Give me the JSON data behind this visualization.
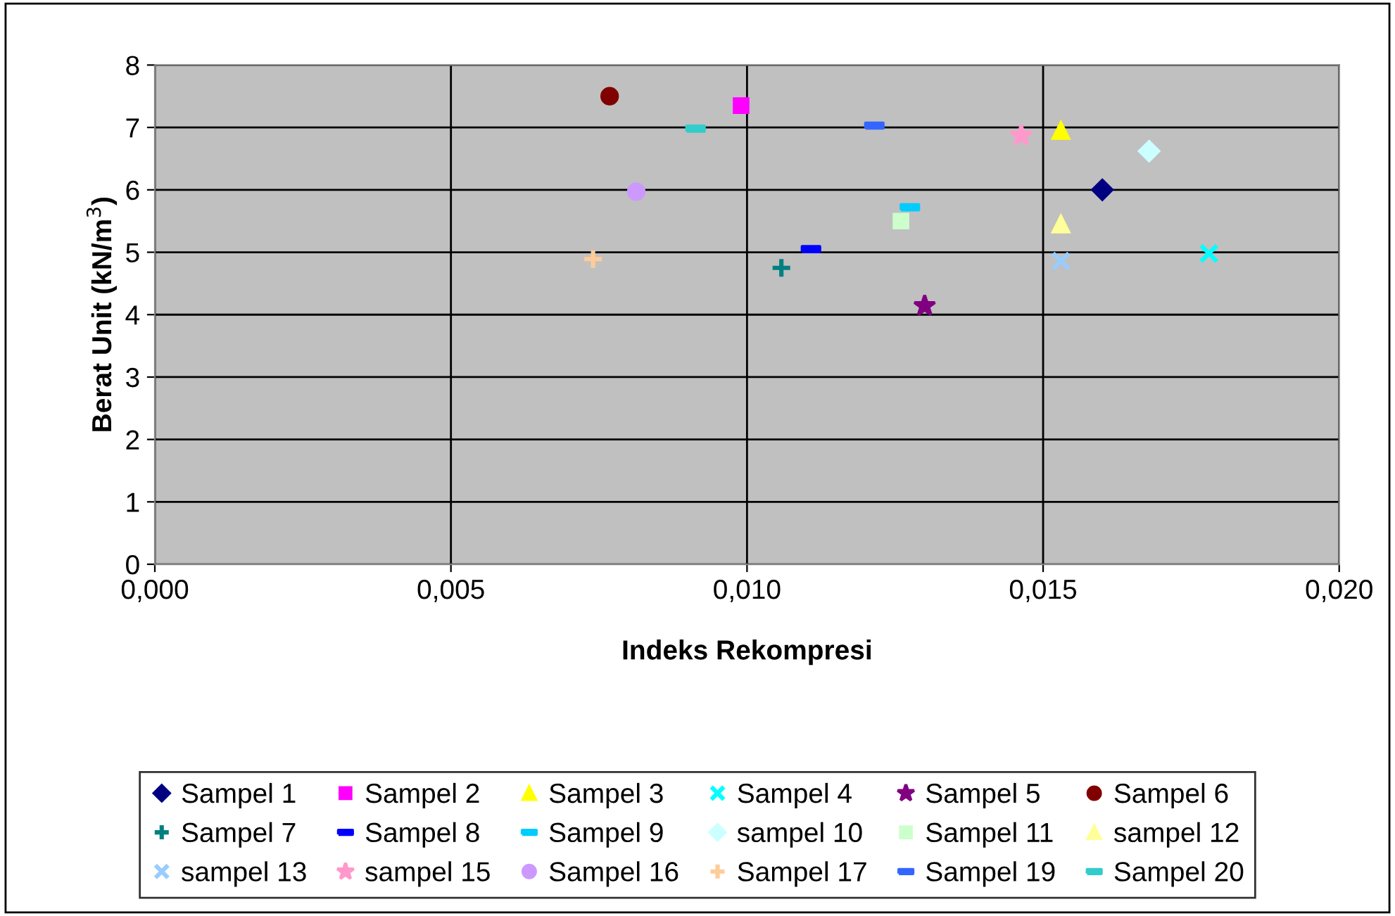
{
  "chart_data": {
    "type": "scatter",
    "xlabel": "Indeks Rekompresi",
    "ylabel": "Berat Unit (kN/m$^{3}$)",
    "xlim": [
      0,
      0.02
    ],
    "ylim": [
      0,
      8
    ],
    "xticks": [
      {
        "value": 0,
        "label": "0,000"
      },
      {
        "value": 0.005,
        "label": "0,005"
      },
      {
        "value": 0.01,
        "label": "0,010"
      },
      {
        "value": 0.015,
        "label": "0,015"
      },
      {
        "value": 0.02,
        "label": "0,020"
      }
    ],
    "yticks": [
      0,
      1,
      2,
      3,
      4,
      5,
      6,
      7,
      8
    ],
    "grid": true,
    "legend": "bottom",
    "series": [
      {
        "name": "Sampel 1",
        "color": "#000080",
        "marker": "diamond",
        "x": [
          0.016
        ],
        "values": [
          6.0
        ]
      },
      {
        "name": "Sampel 2",
        "color": "#ff00ff",
        "marker": "square",
        "x": [
          0.0099
        ],
        "values": [
          7.35
        ]
      },
      {
        "name": "Sampel 3",
        "color": "#ffff00",
        "marker": "triangle",
        "x": [
          0.0153
        ],
        "values": [
          6.95
        ]
      },
      {
        "name": "Sampel 4",
        "color": "#00ffff",
        "marker": "cross",
        "x": [
          0.0178
        ],
        "values": [
          4.98
        ]
      },
      {
        "name": "Sampel 5",
        "color": "#800080",
        "marker": "star",
        "x": [
          0.013
        ],
        "values": [
          4.14
        ]
      },
      {
        "name": "Sampel 6",
        "color": "#800000",
        "marker": "circle",
        "x": [
          0.00768
        ],
        "values": [
          7.5
        ]
      },
      {
        "name": "Sampel 7",
        "color": "#008080",
        "marker": "plus",
        "x": [
          0.01058
        ],
        "values": [
          4.75
        ]
      },
      {
        "name": "Sampel 8",
        "color": "#0000ff",
        "x": [
          0.01108
        ],
        "values": [
          5.05
        ]
      },
      {
        "name": "Sampel 9",
        "color": "#00ccff",
        "x": [
          0.01275
        ],
        "values": [
          5.72
        ]
      },
      {
        "name": "sampel 10",
        "color": "#ccffff",
        "marker": "diamond",
        "x": [
          0.01679
        ],
        "values": [
          6.62
        ]
      },
      {
        "name": "Sampel 11",
        "color": "#ccffcc",
        "marker": "square",
        "x": [
          0.0126
        ],
        "values": [
          5.5
        ]
      },
      {
        "name": "sampel 12",
        "color": "#ffff99",
        "marker": "triangle",
        "x": [
          0.0153
        ],
        "values": [
          5.45
        ]
      },
      {
        "name": "sampel 13",
        "color": "#99ccff",
        "marker": "cross",
        "x": [
          0.0153
        ],
        "values": [
          4.86
        ]
      },
      {
        "name": "sampel 15",
        "color": "#ff99cc",
        "marker": "star",
        "x": [
          0.01463
        ],
        "values": [
          6.87
        ]
      },
      {
        "name": "Sampel 16",
        "color": "#cc99ff",
        "marker": "circle",
        "x": [
          0.00813
        ],
        "values": [
          5.97
        ]
      },
      {
        "name": "Sampel 17",
        "color": "#ffcc99",
        "marker": "plus",
        "x": [
          0.0074
        ],
        "values": [
          4.89
        ]
      },
      {
        "name": "Sampel 19",
        "color": "#3366ff",
        "x": [
          0.01215
        ],
        "values": [
          7.03
        ]
      },
      {
        "name": "Sampel 20",
        "color": "#33cccc",
        "x": [
          0.00913
        ],
        "values": [
          6.98
        ]
      }
    ]
  }
}
